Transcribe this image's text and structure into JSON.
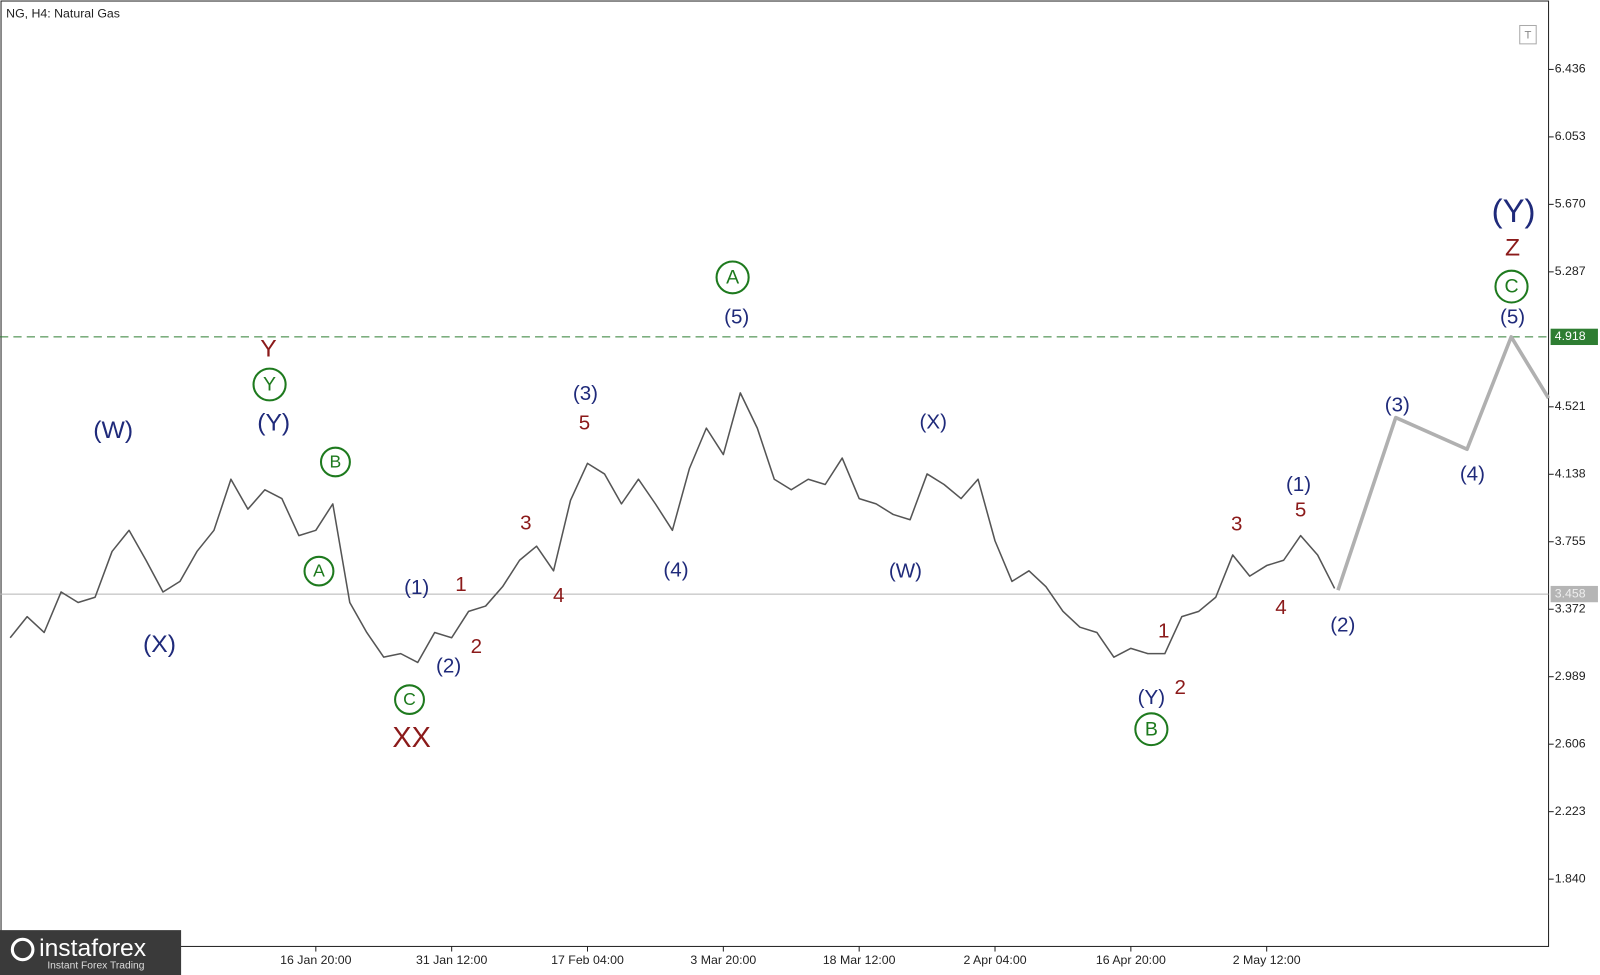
{
  "chart_data": {
    "type": "line",
    "title": "NG, H4:  Natural Gas",
    "brand": {
      "name": "instaforex",
      "tagline": "Instant Forex Trading"
    },
    "xlim": [
      -0.6,
      90.6
    ],
    "xticks": [
      {
        "value": 18,
        "label": "16 Jan 20:00"
      },
      {
        "value": 26,
        "label": "31 Jan 12:00"
      },
      {
        "value": 34,
        "label": "17 Feb 04:00"
      },
      {
        "value": 42,
        "label": "3 Mar 20:00"
      },
      {
        "value": 50,
        "label": "18 Mar 12:00"
      },
      {
        "value": 58,
        "label": "2 Apr 04:00"
      },
      {
        "value": 66,
        "label": "16 Apr 20:00"
      },
      {
        "value": 74,
        "label": "2 May 12:00"
      }
    ],
    "ylim": [
      1.458,
      6.83
    ],
    "yticks": [
      {
        "value": 1.84,
        "label": "1.840"
      },
      2.223,
      2.606,
      2.989,
      3.372,
      3.755,
      4.138,
      4.521,
      5.287,
      {
        "value": 5.67,
        "label": "5.670"
      },
      6.053,
      6.436
    ],
    "grid": false,
    "levels": [
      {
        "value": 4.918,
        "color": "#2e7d32",
        "style": "dashed"
      },
      {
        "value": 3.458,
        "color": "#b5b5b5",
        "style": "solid"
      }
    ],
    "series": [
      {
        "color": "#555555",
        "width": 1.5,
        "x": [
          0,
          1,
          2,
          3,
          4,
          5,
          6,
          7,
          8,
          9,
          10,
          11,
          12,
          13,
          14,
          15,
          16,
          17,
          18,
          19,
          20,
          21,
          22,
          23,
          24,
          25,
          26,
          27,
          28,
          29,
          30,
          31,
          32,
          33,
          34,
          35,
          36,
          37,
          38,
          39,
          40,
          41,
          42,
          43,
          44,
          45,
          46,
          47,
          48,
          49,
          50,
          51,
          52,
          53,
          54,
          55,
          56,
          57,
          58,
          59,
          60,
          61,
          62,
          63,
          64,
          65,
          66,
          67,
          68,
          69,
          70,
          71,
          72,
          73,
          74,
          75,
          76,
          77,
          78
        ],
        "values": [
          3.21,
          3.33,
          3.24,
          3.47,
          3.41,
          3.44,
          3.7,
          3.82,
          3.65,
          3.47,
          3.53,
          3.7,
          3.82,
          4.11,
          3.94,
          4.05,
          4.0,
          3.79,
          3.82,
          3.97,
          3.41,
          3.24,
          3.1,
          3.12,
          3.07,
          3.24,
          3.21,
          3.36,
          3.39,
          3.5,
          3.65,
          3.73,
          3.59,
          3.99,
          4.2,
          4.14,
          3.97,
          4.11,
          3.97,
          3.82,
          4.17,
          4.4,
          4.25,
          4.6,
          4.4,
          4.11,
          4.05,
          4.11,
          4.08,
          4.23,
          4.0,
          3.97,
          3.91,
          3.88,
          4.14,
          4.08,
          4.0,
          4.11,
          3.76,
          3.53,
          3.59,
          3.5,
          3.36,
          3.27,
          3.24,
          3.1,
          3.15,
          3.12,
          3.12,
          3.33,
          3.36,
          3.44,
          3.68,
          3.56,
          3.62,
          3.65,
          3.79,
          3.68,
          3.49
        ]
      },
      {
        "color": "#b0b0b0",
        "width": 3.5,
        "x": [
          78.2,
          81.6,
          85.8,
          88.4,
          90.6
        ],
        "values": [
          3.48,
          4.46,
          4.28,
          4.918,
          4.57
        ]
      }
    ],
    "annotations": [
      {
        "text": "(W)",
        "color": "#1f2a7a",
        "size": 24
      },
      {
        "text": "(X)",
        "color": "#1f2a7a",
        "size": 24
      },
      {
        "text": "Y",
        "color": "#8b1a1a",
        "size": 24
      },
      {
        "text": "Y",
        "color": "#1e7a1e",
        "size": 20,
        "circled": true
      },
      {
        "text": "(Y)",
        "color": "#1f2a7a",
        "size": 24
      },
      {
        "text": "B",
        "color": "#1e7a1e",
        "size": 18,
        "circled": true
      },
      {
        "text": "A",
        "color": "#1e7a1e",
        "size": 18,
        "circled": true
      },
      {
        "text": "C",
        "color": "#1e7a1e",
        "size": 18,
        "circled": true
      },
      {
        "text": "XX",
        "color": "#8b1a1a",
        "size": 28
      },
      {
        "text": "(1)",
        "color": "#1f2a7a",
        "size": 20
      },
      {
        "text": "1",
        "color": "#8b1a1a",
        "size": 20
      },
      {
        "text": "(2)",
        "color": "#1f2a7a",
        "size": 20
      },
      {
        "text": "2",
        "color": "#8b1a1a",
        "size": 20
      },
      {
        "text": "3",
        "color": "#8b1a1a",
        "size": 20
      },
      {
        "text": "4",
        "color": "#8b1a1a",
        "size": 20
      },
      {
        "text": "(3)",
        "color": "#1f2a7a",
        "size": 20
      },
      {
        "text": "5",
        "color": "#8b1a1a",
        "size": 20
      },
      {
        "text": "(4)",
        "color": "#1f2a7a",
        "size": 20
      },
      {
        "text": "A",
        "color": "#1e7a1e",
        "size": 20,
        "circled": true
      },
      {
        "text": "(5)",
        "color": "#1f2a7a",
        "size": 20
      },
      {
        "text": "(X)",
        "color": "#1f2a7a",
        "size": 20
      },
      {
        "text": "(W)",
        "color": "#1f2a7a",
        "size": 20
      },
      {
        "text": "1",
        "color": "#8b1a1a",
        "size": 20
      },
      {
        "text": "2",
        "color": "#8b1a1a",
        "size": 20
      },
      {
        "text": "(Y)",
        "color": "#1f2a7a",
        "size": 20
      },
      {
        "text": "B",
        "color": "#1e7a1e",
        "size": 20,
        "circled": true
      },
      {
        "text": "3",
        "color": "#8b1a1a",
        "size": 20
      },
      {
        "text": "4",
        "color": "#8b1a1a",
        "size": 20
      },
      {
        "text": "(1)",
        "color": "#1f2a7a",
        "size": 20
      },
      {
        "text": "5",
        "color": "#8b1a1a",
        "size": 20
      },
      {
        "text": "(2)",
        "color": "#1f2a7a",
        "size": 20
      },
      {
        "text": "(3)",
        "color": "#1f2a7a",
        "size": 20
      },
      {
        "text": "(4)",
        "color": "#1f2a7a",
        "size": 20
      },
      {
        "text": "(5)",
        "color": "#1f2a7a",
        "size": 20
      },
      {
        "text": "C",
        "color": "#1e7a1e",
        "size": 20,
        "circled": true
      },
      {
        "text": "Z",
        "color": "#8b1a1a",
        "size": 24
      },
      {
        "text": "(Y)",
        "color": "#1f2a7a",
        "size": 32
      }
    ]
  }
}
